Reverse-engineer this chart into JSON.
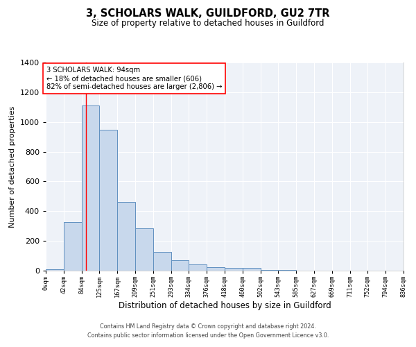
{
  "title": "3, SCHOLARS WALK, GUILDFORD, GU2 7TR",
  "subtitle": "Size of property relative to detached houses in Guildford",
  "xlabel": "Distribution of detached houses by size in Guildford",
  "ylabel": "Number of detached properties",
  "bar_color": "#c8d8ec",
  "bar_edge_color": "#6090c0",
  "background_color": "#eef2f8",
  "grid_color": "#ffffff",
  "red_line_x": 94,
  "annotation_line1": "3 SCHOLARS WALK: 94sqm",
  "annotation_line2": "← 18% of detached houses are smaller (606)",
  "annotation_line3": "82% of semi-detached houses are larger (2,806) →",
  "footer1": "Contains HM Land Registry data © Crown copyright and database right 2024.",
  "footer2": "Contains public sector information licensed under the Open Government Licence v3.0.",
  "bins": [
    0,
    42,
    84,
    125,
    167,
    209,
    251,
    293,
    334,
    376,
    418,
    460,
    502,
    543,
    585,
    627,
    669,
    711,
    752,
    794,
    836
  ],
  "counts": [
    10,
    328,
    1113,
    946,
    460,
    287,
    127,
    70,
    44,
    22,
    18,
    20,
    3,
    4,
    2,
    1,
    0,
    1,
    0,
    0
  ],
  "ylim": [
    0,
    1400
  ],
  "yticks": [
    0,
    200,
    400,
    600,
    800,
    1000,
    1200,
    1400
  ]
}
